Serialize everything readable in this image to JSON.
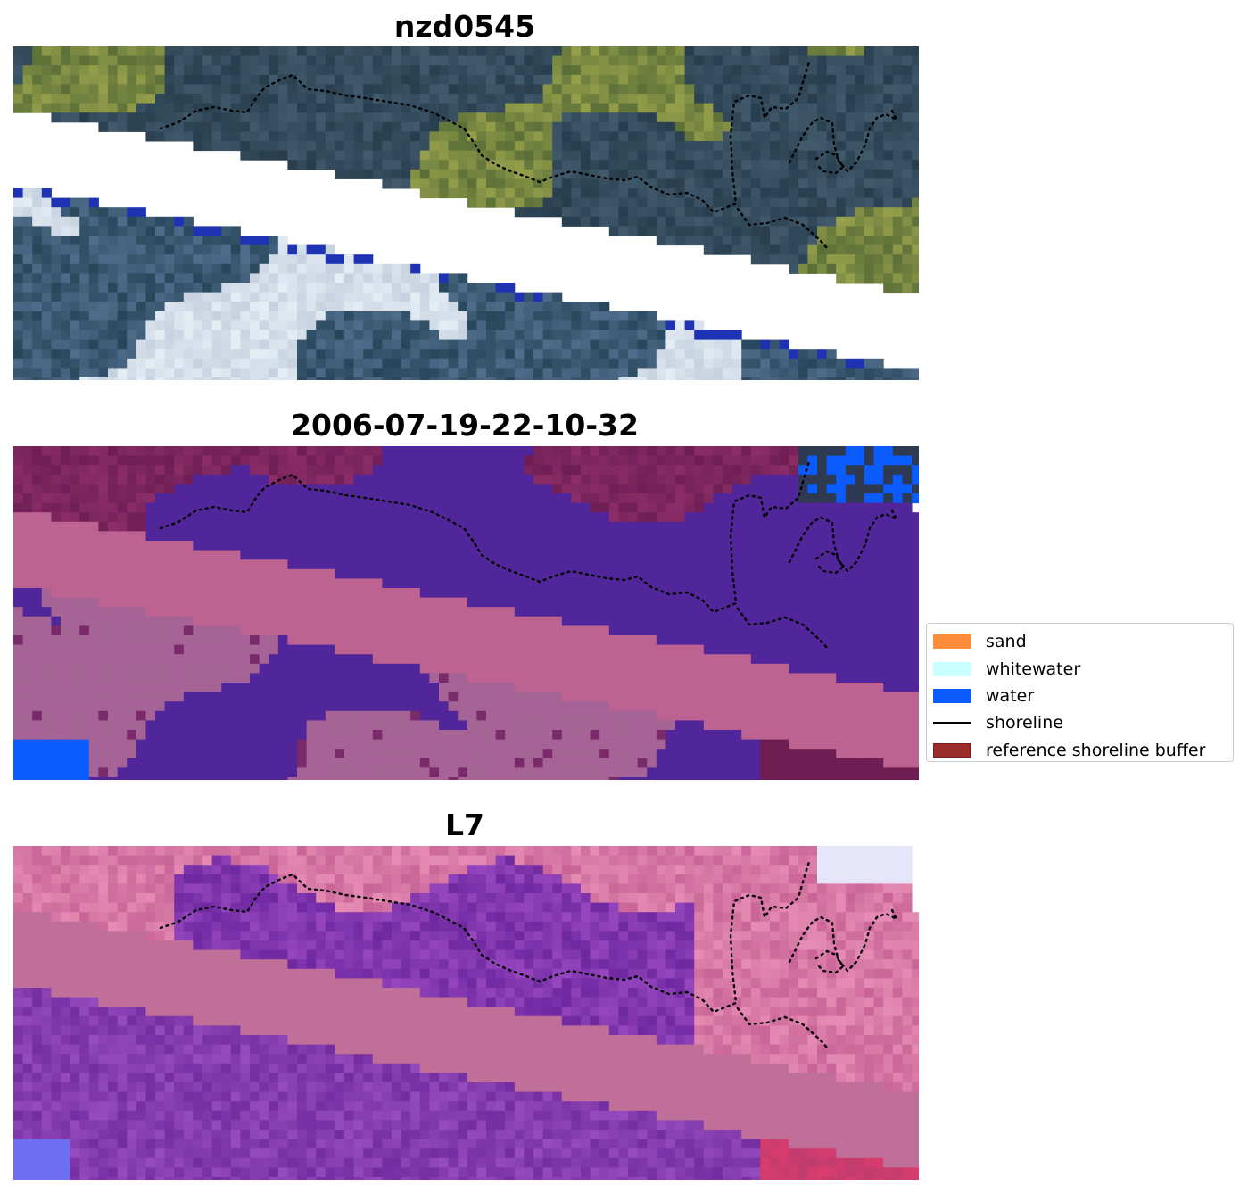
{
  "panels": [
    {
      "title": "nzd0545",
      "variant": "rgb"
    },
    {
      "title": "2006-07-19-22-10-32",
      "variant": "classified"
    },
    {
      "title": "L7",
      "variant": "index"
    }
  ],
  "legend": {
    "items": [
      {
        "label": "sand",
        "color": "#ff8c3a",
        "kind": "patch"
      },
      {
        "label": "whitewater",
        "color": "#c8ffff",
        "kind": "patch"
      },
      {
        "label": "water",
        "color": "#0a5cff",
        "kind": "patch"
      },
      {
        "label": "shoreline",
        "color": "#000000",
        "kind": "line"
      },
      {
        "label": "reference shoreline buffer",
        "color": "#9b2d2d",
        "kind": "patch",
        "edge": "#7a1a1a"
      }
    ]
  },
  "colors": {
    "rgb_land": "#2f4a4a",
    "rgb_cloud": "#c9d3e6",
    "classified_purple": "#51269a",
    "classified_land": "#6e1e52",
    "buffer_pink": "#bd6392",
    "index_pink": "#c07098",
    "index_purple": "#7d3aa8"
  }
}
